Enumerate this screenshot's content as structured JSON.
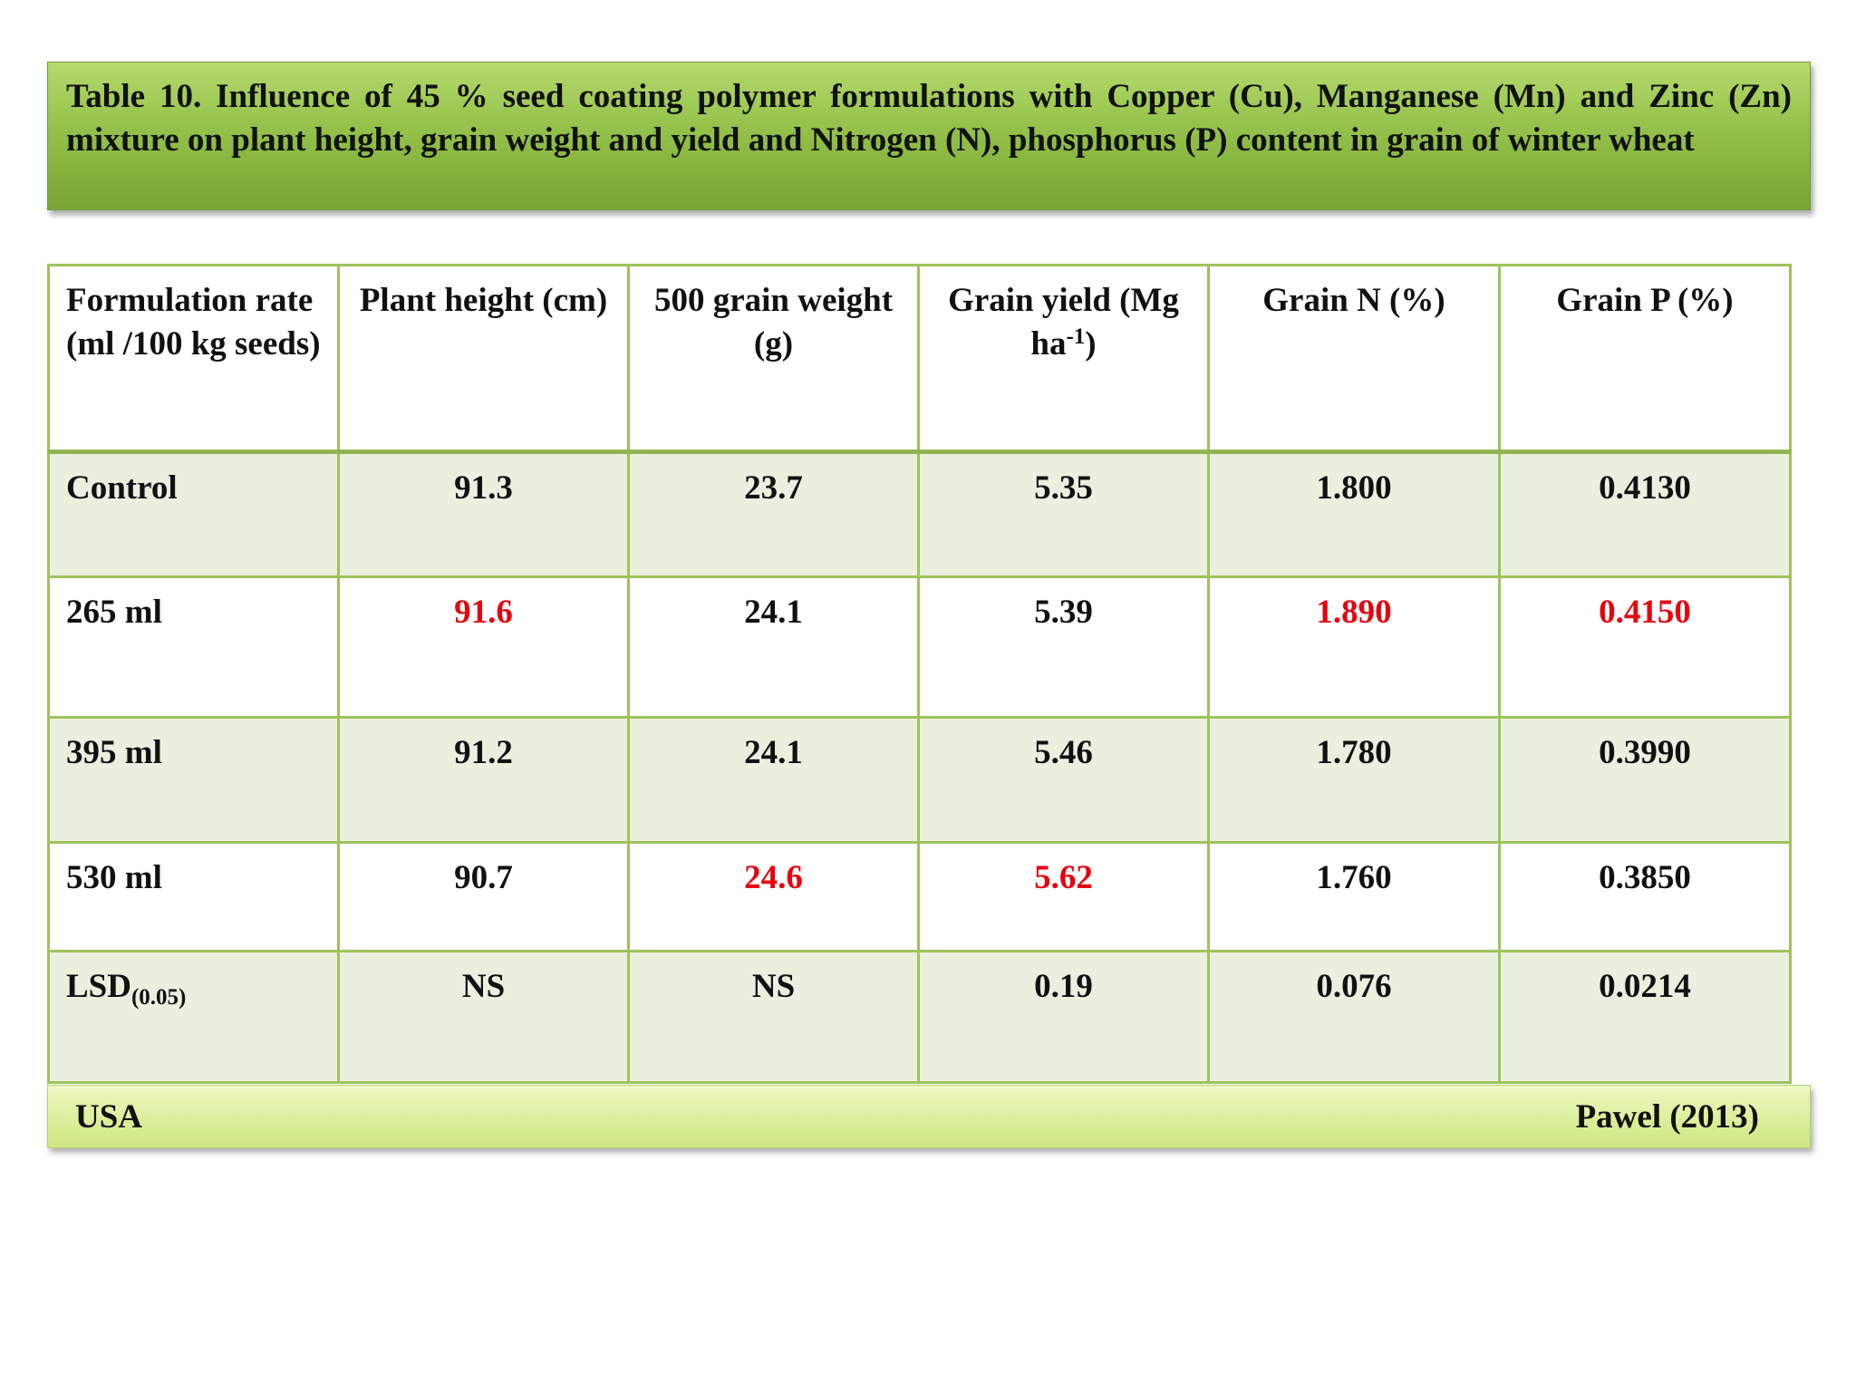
{
  "title": "Table 10. Influence of 45 % seed coating polymer formulations with Copper (Cu), Manganese (Mn) and Zinc (Zn) mixture on plant height, grain weight and yield and Nitrogen (N),  phosphorus (P) content in grain of winter wheat",
  "table": {
    "headers": {
      "formulation": "Formulation rate (ml /100 kg seeds)",
      "plant_height": "Plant height (cm)",
      "grain_weight": "500 grain weight (g)",
      "grain_yield_main": "Grain yield (Mg ha",
      "grain_yield_sup": "-1",
      "grain_yield_close": ")",
      "grain_n": "Grain N (%)",
      "grain_p": "Grain P (%)"
    },
    "rows": [
      {
        "label": "Control",
        "plant_height": "91.3",
        "grain_weight": "23.7",
        "grain_yield": "5.35",
        "grain_n": "1.800",
        "grain_p": "0.4130"
      },
      {
        "label": "265 ml",
        "plant_height": "91.6",
        "grain_weight": "24.1",
        "grain_yield": "5.39",
        "grain_n": "1.890",
        "grain_p": "0.4150"
      },
      {
        "label": "395 ml",
        "plant_height": "91.2",
        "grain_weight": "24.1",
        "grain_yield": "5.46",
        "grain_n": "1.780",
        "grain_p": "0.3990"
      },
      {
        "label": "530 ml",
        "plant_height": "90.7",
        "grain_weight": "24.6",
        "grain_yield": "5.62",
        "grain_n": "1.760",
        "grain_p": "0.3850"
      }
    ],
    "lsd": {
      "label": "LSD",
      "label_sub": "(0.05)",
      "plant_height": "NS",
      "grain_weight": "NS",
      "grain_yield": "0.19",
      "grain_n": "0.076",
      "grain_p": "0.0214"
    }
  },
  "highlight_color": "#e8000f",
  "footer": {
    "left": "USA",
    "right": "Pawel (2013)"
  }
}
